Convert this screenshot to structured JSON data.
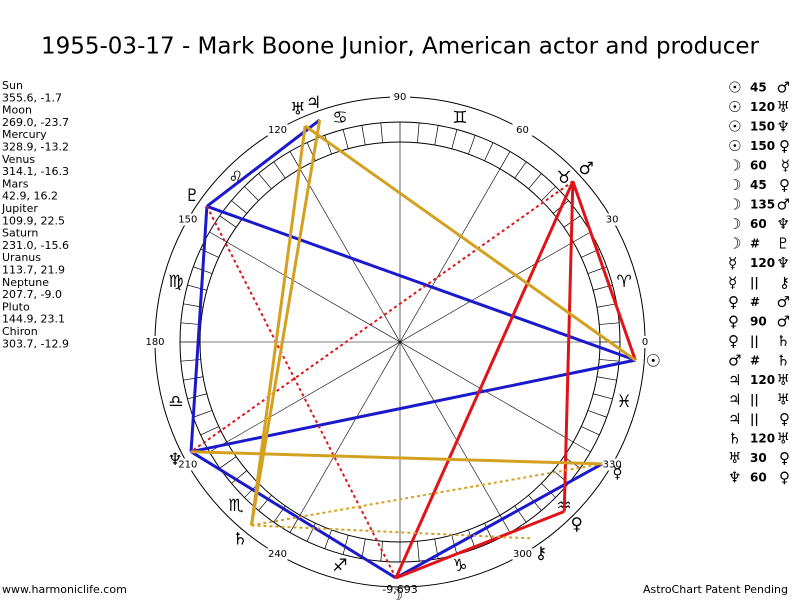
{
  "title": "1955-03-17 - Mark Boone Junior, American actor and producer",
  "planets": [
    {
      "name": "Sun",
      "glyph": "☉",
      "coords": "355.6, -1.7"
    },
    {
      "name": "Moon",
      "glyph": "☽",
      "coords": "269.0, -23.7"
    },
    {
      "name": "Mercury",
      "glyph": "☿",
      "coords": "328.9, -13.2"
    },
    {
      "name": "Venus",
      "glyph": "♀",
      "coords": "314.1, -16.3"
    },
    {
      "name": "Mars",
      "glyph": "♂",
      "coords": "42.9, 16.2"
    },
    {
      "name": "Jupiter",
      "glyph": "♃",
      "coords": "109.9, 22.5"
    },
    {
      "name": "Saturn",
      "glyph": "♄",
      "coords": "231.0, -15.6"
    },
    {
      "name": "Uranus",
      "glyph": "♅",
      "coords": "113.7, 21.9"
    },
    {
      "name": "Neptune",
      "glyph": "♆",
      "coords": "207.7, -9.0"
    },
    {
      "name": "Pluto",
      "glyph": "♇",
      "coords": "144.9, 23.1"
    },
    {
      "name": "Chiron",
      "glyph": "⚷",
      "coords": "303.7, -12.9"
    }
  ],
  "zodiac": [
    "♈",
    "♉",
    "♊",
    "♋",
    "♌",
    "♍",
    "♎",
    "♏",
    "♐",
    "♑",
    "♒",
    "♓"
  ],
  "degree_labels": [
    0,
    30,
    60,
    90,
    120,
    150,
    180,
    210,
    240,
    300,
    330
  ],
  "bottom_label": "-9,693",
  "aspects": [
    {
      "a": "☉",
      "kind": "45",
      "b": "♂"
    },
    {
      "a": "☉",
      "kind": "120",
      "b": "♅"
    },
    {
      "a": "☉",
      "kind": "150",
      "b": "♆"
    },
    {
      "a": "☉",
      "kind": "150",
      "b": "♀"
    },
    {
      "a": "☽",
      "kind": "60",
      "b": "☿"
    },
    {
      "a": "☽",
      "kind": "45",
      "b": "♀"
    },
    {
      "a": "☽",
      "kind": "135",
      "b": "♂"
    },
    {
      "a": "☽",
      "kind": "60",
      "b": "♆"
    },
    {
      "a": "☽",
      "kind": "#",
      "b": "♇"
    },
    {
      "a": "☿",
      "kind": "120",
      "b": "♆"
    },
    {
      "a": "☿",
      "kind": "||",
      "b": "⚷"
    },
    {
      "a": "♀",
      "kind": "#",
      "b": "♂"
    },
    {
      "a": "♀",
      "kind": "90",
      "b": "♂"
    },
    {
      "a": "♀",
      "kind": "||",
      "b": "♄"
    },
    {
      "a": "♂",
      "kind": "#",
      "b": "♄"
    },
    {
      "a": "♃",
      "kind": "120",
      "b": "♅"
    },
    {
      "a": "♃",
      "kind": "||",
      "b": "♅"
    },
    {
      "a": "♃",
      "kind": "||",
      "b": "♀"
    },
    {
      "a": "♄",
      "kind": "120",
      "b": "♅"
    },
    {
      "a": "♅",
      "kind": "30",
      "b": "♀"
    },
    {
      "a": "♆",
      "kind": "60",
      "b": "♀"
    }
  ],
  "footer": {
    "left": "www.harmoniclife.com",
    "right": "AstroChart Patent Pending"
  }
}
